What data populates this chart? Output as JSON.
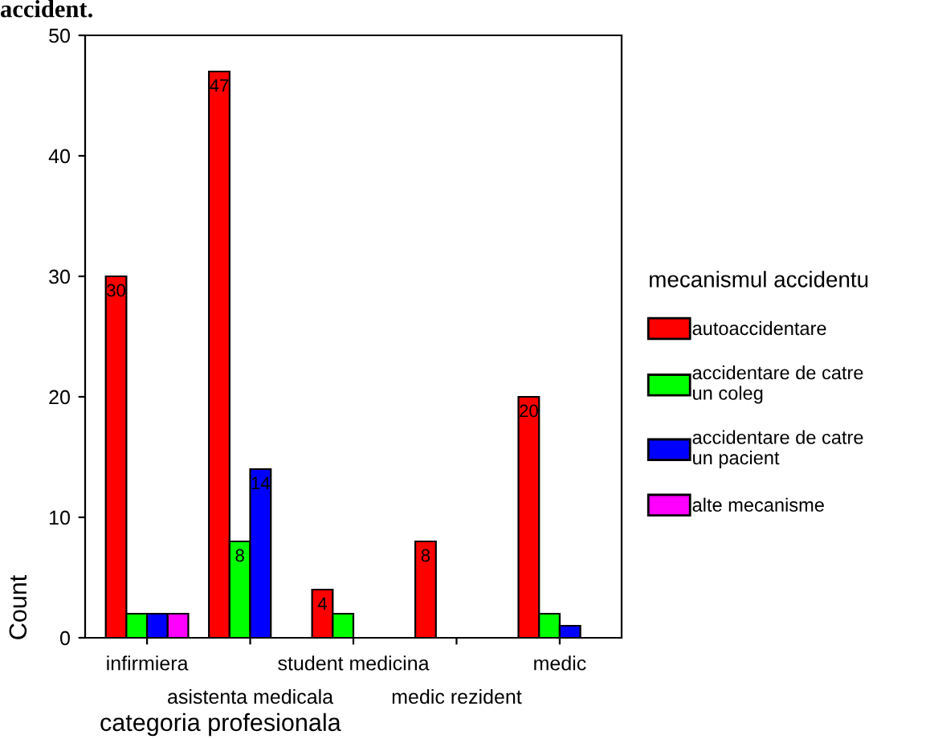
{
  "chart_data": {
    "type": "bar",
    "title": "accident.",
    "xlabel": "categoria profesionala",
    "ylabel": "Count",
    "legend_title": "mecanismul accidentu",
    "categories": [
      "infirmiera",
      "asistenta medicala",
      "student medicina",
      "medic rezident",
      "medic"
    ],
    "series": [
      {
        "name": "autoaccidentare",
        "color": "#ff0000",
        "values": [
          30,
          47,
          4,
          8,
          20
        ],
        "value_labels": [
          "30",
          "47",
          "4",
          "8",
          "20"
        ]
      },
      {
        "name": "accidentare de catre\nun coleg",
        "color": "#00ff00",
        "values": [
          2,
          8,
          2,
          null,
          2
        ],
        "value_labels": [
          null,
          "8",
          null,
          null,
          null
        ]
      },
      {
        "name": "accidentare de catre\nun pacient",
        "color": "#0000ff",
        "values": [
          2,
          14,
          null,
          null,
          1
        ],
        "value_labels": [
          null,
          "14",
          null,
          null,
          null
        ]
      },
      {
        "name": "alte mecanisme",
        "color": "#ff00ff",
        "values": [
          2,
          null,
          null,
          null,
          null
        ],
        "value_labels": [
          null,
          null,
          null,
          null,
          null
        ]
      }
    ],
    "ylim": [
      0,
      50
    ],
    "yticks": [
      0,
      10,
      20,
      30,
      40,
      50
    ],
    "grid": false,
    "legend": "right"
  }
}
